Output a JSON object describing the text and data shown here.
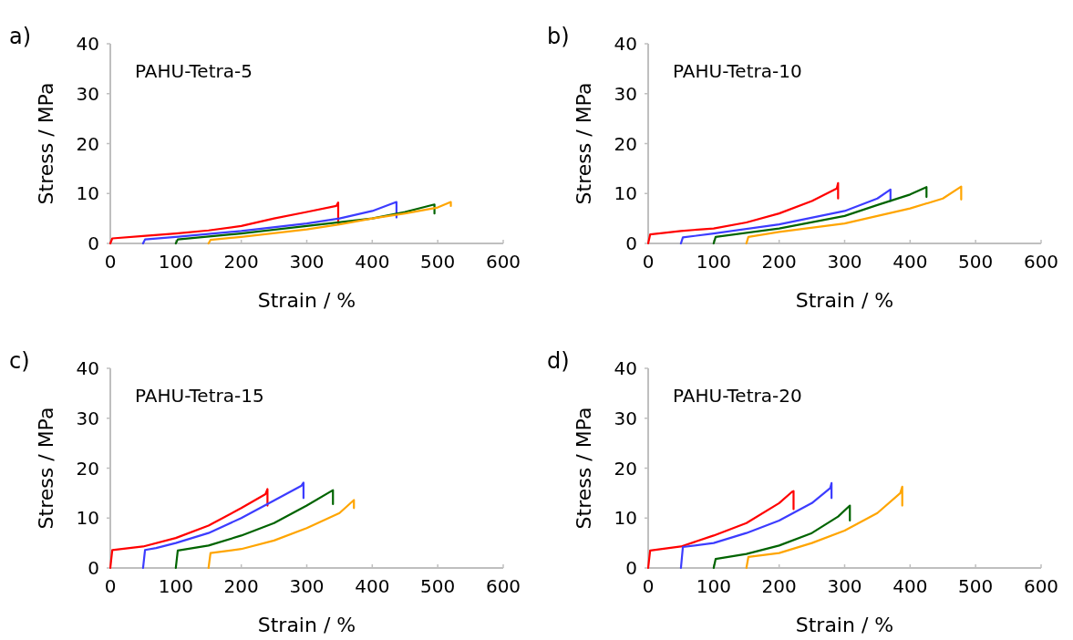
{
  "chart_data": [
    {
      "type": "line",
      "title": "PAHU-Tetra-5",
      "annotations": [
        "a)"
      ],
      "xlabel": "Strain / %",
      "ylabel": "Stress / MPa",
      "xlim": [
        0,
        600
      ],
      "xticks": [
        0,
        100,
        200,
        300,
        400,
        500,
        600
      ],
      "ylim": [
        0,
        40
      ],
      "yticks": [
        0,
        10,
        20,
        30,
        40
      ],
      "grid": false,
      "marker": "none",
      "line_style": "solid",
      "series": [
        {
          "color": "#ff0000",
          "x": [
            0,
            3,
            50,
            100,
            150,
            200,
            250,
            300,
            345,
            348,
            348
          ],
          "values": [
            0,
            1,
            1.5,
            2,
            2.6,
            3.5,
            5,
            6.3,
            7.5,
            8.2,
            4
          ]
        },
        {
          "color": "#3c3cff",
          "x": [
            50,
            53,
            100,
            200,
            300,
            350,
            400,
            437,
            437
          ],
          "values": [
            0,
            0.8,
            1.3,
            2.5,
            4,
            5,
            6.5,
            8.3,
            5.2
          ]
        },
        {
          "color": "#006400",
          "x": [
            100,
            103,
            200,
            300,
            400,
            450,
            495,
            495
          ],
          "values": [
            0,
            0.8,
            2,
            3.5,
            5,
            6.3,
            7.8,
            6
          ]
        },
        {
          "color": "#ffa500",
          "x": [
            150,
            153,
            200,
            300,
            350,
            400,
            450,
            500,
            520,
            520
          ],
          "values": [
            0,
            0.7,
            1.3,
            2.8,
            3.8,
            5,
            6,
            7.2,
            8.3,
            7.5
          ]
        }
      ]
    },
    {
      "type": "line",
      "title": "PAHU-Tetra-10",
      "annotations": [
        "b)"
      ],
      "xlabel": "Strain / %",
      "ylabel": "Stress / MPa",
      "xlim": [
        0,
        600
      ],
      "xticks": [
        0,
        100,
        200,
        300,
        400,
        500,
        600
      ],
      "ylim": [
        0,
        40
      ],
      "yticks": [
        0,
        10,
        20,
        30,
        40
      ],
      "grid": false,
      "marker": "none",
      "line_style": "solid",
      "series": [
        {
          "color": "#ff0000",
          "x": [
            0,
            3,
            50,
            100,
            150,
            200,
            250,
            288,
            290,
            290
          ],
          "values": [
            0,
            1.8,
            2.5,
            3,
            4.2,
            6,
            8.5,
            11,
            12.1,
            9
          ]
        },
        {
          "color": "#3c3cff",
          "x": [
            50,
            53,
            100,
            200,
            300,
            350,
            370,
            370
          ],
          "values": [
            0,
            1.2,
            2,
            3.8,
            6.5,
            9,
            10.8,
            8.5
          ]
        },
        {
          "color": "#006400",
          "x": [
            100,
            103,
            200,
            300,
            350,
            400,
            425,
            425
          ],
          "values": [
            0,
            1.3,
            3,
            5.5,
            7.7,
            9.8,
            11.3,
            9.3
          ]
        },
        {
          "color": "#ffa500",
          "x": [
            150,
            153,
            200,
            300,
            400,
            450,
            478,
            478
          ],
          "values": [
            0,
            1.3,
            2.3,
            4,
            7,
            9,
            11.4,
            8.8
          ]
        }
      ]
    },
    {
      "type": "line",
      "title": "PAHU-Tetra-15",
      "annotations": [
        "c)"
      ],
      "xlabel": "Strain / %",
      "ylabel": "Stress / MPa",
      "xlim": [
        0,
        600
      ],
      "xticks": [
        0,
        100,
        200,
        300,
        400,
        500,
        600
      ],
      "ylim": [
        0,
        40
      ],
      "yticks": [
        0,
        10,
        20,
        30,
        40
      ],
      "grid": false,
      "marker": "none",
      "line_style": "solid",
      "series": [
        {
          "color": "#ff0000",
          "x": [
            0,
            3,
            50,
            100,
            150,
            200,
            237,
            240,
            240
          ],
          "values": [
            0,
            3.6,
            4.3,
            6,
            8.5,
            12,
            14.8,
            15.8,
            12.5
          ]
        },
        {
          "color": "#3c3cff",
          "x": [
            50,
            53,
            70,
            100,
            150,
            200,
            250,
            292,
            295,
            295
          ],
          "values": [
            0,
            3.6,
            4,
            5,
            7,
            10,
            13.5,
            16.5,
            17.1,
            14
          ]
        },
        {
          "color": "#006400",
          "x": [
            100,
            103,
            150,
            200,
            250,
            300,
            340,
            340
          ],
          "values": [
            0,
            3.5,
            4.5,
            6.5,
            9,
            12.5,
            15.6,
            12.8
          ]
        },
        {
          "color": "#ffa500",
          "x": [
            150,
            153,
            200,
            250,
            300,
            350,
            372,
            372
          ],
          "values": [
            0,
            3,
            3.8,
            5.5,
            8,
            11,
            13.6,
            12
          ]
        }
      ]
    },
    {
      "type": "line",
      "title": "PAHU-Tetra-20",
      "annotations": [
        "d)"
      ],
      "xlabel": "Strain / %",
      "ylabel": "Stress / MPa",
      "xlim": [
        0,
        600
      ],
      "xticks": [
        0,
        100,
        200,
        300,
        400,
        500,
        600
      ],
      "ylim": [
        0,
        40
      ],
      "yticks": [
        0,
        10,
        20,
        30,
        40
      ],
      "grid": false,
      "marker": "none",
      "line_style": "solid",
      "series": [
        {
          "color": "#ff0000",
          "x": [
            0,
            3,
            50,
            100,
            150,
            200,
            220,
            222,
            222
          ],
          "values": [
            0,
            3.5,
            4.3,
            6.5,
            9,
            13,
            15.3,
            15.4,
            11.8
          ]
        },
        {
          "color": "#3c3cff",
          "x": [
            50,
            53,
            100,
            150,
            200,
            250,
            278,
            280,
            280
          ],
          "values": [
            0,
            4.2,
            5,
            7,
            9.5,
            13,
            16,
            17,
            14
          ]
        },
        {
          "color": "#006400",
          "x": [
            100,
            103,
            150,
            200,
            250,
            290,
            308,
            308
          ],
          "values": [
            0,
            1.8,
            2.8,
            4.5,
            7,
            10.3,
            12.5,
            9.5
          ]
        },
        {
          "color": "#ffa500",
          "x": [
            150,
            153,
            200,
            250,
            300,
            350,
            385,
            388,
            388
          ],
          "values": [
            0,
            2.2,
            3,
            5,
            7.5,
            11,
            15,
            16.3,
            12.5
          ]
        }
      ]
    }
  ]
}
